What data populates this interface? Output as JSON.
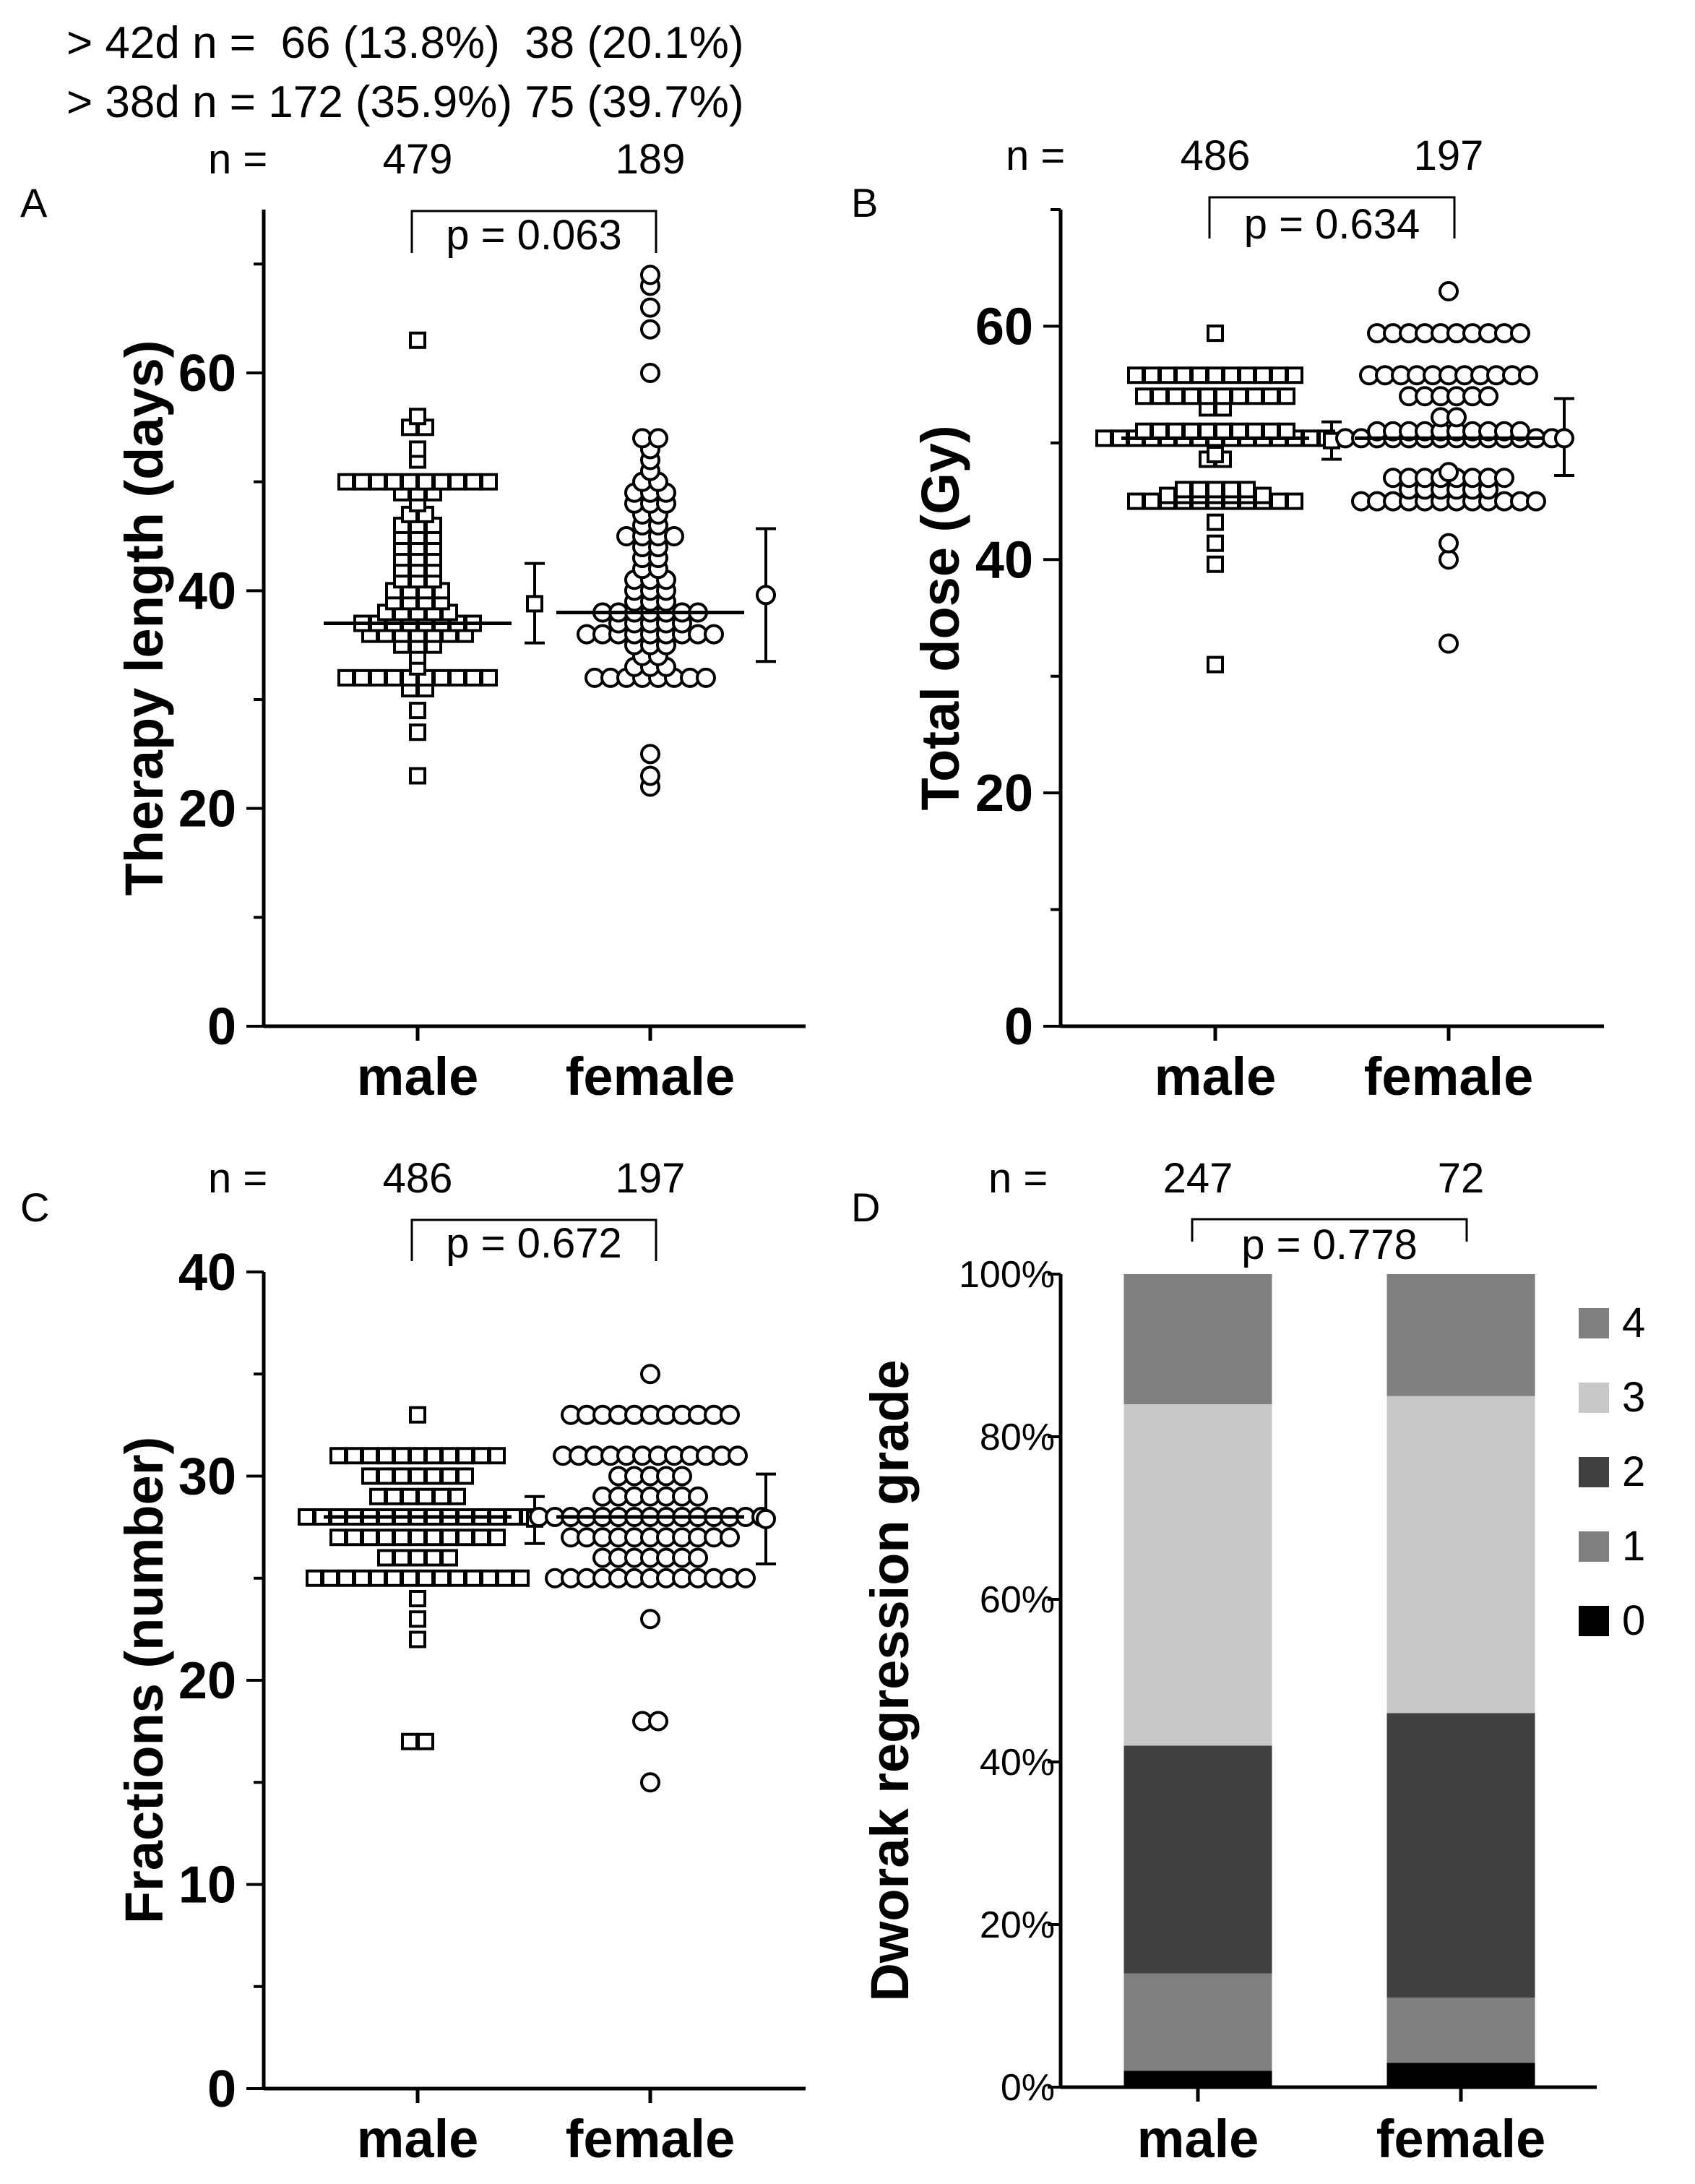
{
  "header": {
    "line1": "> 42d n =  66 (13.8%)  38 (20.1%)",
    "line2": "> 38d n = 172 (35.9%) 75 (39.7%)"
  },
  "chart_data": [
    {
      "panel": "A",
      "type": "scatter",
      "categories": [
        "male",
        "female"
      ],
      "n_label": "n =",
      "n_values": [
        "479",
        "189"
      ],
      "p_label": "p = 0.063",
      "ylabel": "Therapy length (days)",
      "ylim": [
        0,
        75
      ],
      "yticks": [
        0,
        20,
        40,
        60
      ],
      "medians": [
        37,
        38
      ],
      "summary": [
        {
          "mean": 38.8,
          "low": 35.2,
          "high": 42.5
        },
        {
          "mean": 39.6,
          "low": 33.5,
          "high": 45.7
        }
      ],
      "points": [
        [
          23,
          27,
          29,
          31,
          31,
          32,
          32,
          32,
          32,
          32,
          32,
          32,
          32,
          32,
          32,
          33,
          34,
          35,
          35,
          35,
          36,
          36,
          36,
          36,
          36,
          36,
          36,
          37,
          37,
          37,
          37,
          37,
          37,
          37,
          37,
          38,
          38,
          38,
          38,
          38,
          39,
          39,
          39,
          39,
          40,
          40,
          40,
          40,
          41,
          41,
          41,
          42,
          42,
          42,
          43,
          43,
          43,
          44,
          44,
          44,
          45,
          45,
          45,
          46,
          46,
          46,
          47,
          47,
          48,
          49,
          49,
          49,
          50,
          50,
          50,
          50,
          50,
          50,
          50,
          50,
          50,
          50,
          52,
          53,
          55,
          55,
          56,
          63
        ],
        [
          22,
          23,
          25,
          32,
          32,
          32,
          32,
          32,
          32,
          32,
          32,
          33,
          33,
          33,
          34,
          34,
          35,
          35,
          35,
          36,
          36,
          36,
          36,
          36,
          36,
          36,
          36,
          36,
          37,
          37,
          37,
          37,
          37,
          38,
          38,
          38,
          38,
          38,
          38,
          38,
          39,
          39,
          39,
          40,
          40,
          40,
          41,
          41,
          41,
          42,
          42,
          43,
          43,
          44,
          44,
          45,
          45,
          45,
          45,
          46,
          46,
          47,
          47,
          48,
          48,
          48,
          49,
          49,
          49,
          50,
          50,
          51,
          52,
          53,
          54,
          54,
          60,
          64,
          66,
          68,
          69
        ]
      ]
    },
    {
      "panel": "B",
      "type": "scatter",
      "categories": [
        "male",
        "female"
      ],
      "n_label": "n =",
      "n_values": [
        "486",
        "197"
      ],
      "p_label": "p = 0.634",
      "ylabel": "Total dose (Gy)",
      "ylim": [
        0,
        70
      ],
      "yticks": [
        0,
        20,
        40,
        60
      ],
      "medians": [
        50.4,
        50.4
      ],
      "summary": [
        {
          "mean": 50.2,
          "low": 48.6,
          "high": 51.8
        },
        {
          "mean": 50.4,
          "low": 47.2,
          "high": 53.8
        }
      ],
      "points": [
        [
          31,
          39.6,
          41.4,
          43.2,
          45,
          45,
          45,
          45,
          45,
          45,
          45,
          45,
          45,
          45,
          45,
          45.5,
          45.5,
          45.5,
          45.5,
          45.5,
          45.5,
          45.5,
          46,
          46,
          46,
          46,
          46,
          48.6,
          48.6,
          49,
          50.4,
          50.4,
          50.4,
          50.4,
          50.4,
          50.4,
          50.4,
          50.4,
          50.4,
          50.4,
          50.4,
          50.4,
          50.4,
          50.4,
          50.4,
          51,
          51,
          51,
          51,
          51,
          51,
          51,
          51,
          51,
          51,
          53,
          53,
          54,
          54,
          54,
          54,
          54,
          54,
          54,
          54,
          54,
          54,
          55.8,
          55.8,
          55.8,
          55.8,
          55.8,
          55.8,
          55.8,
          55.8,
          55.8,
          55.8,
          55.8,
          59.4
        ],
        [
          32.8,
          40,
          41.4,
          45,
          45,
          45,
          45,
          45,
          45,
          45,
          45,
          45,
          45,
          45,
          45,
          46,
          46,
          46,
          46,
          46,
          46,
          47,
          47,
          47,
          47,
          47,
          47,
          47,
          47,
          47.5,
          50.4,
          50.4,
          50.4,
          50.4,
          50.4,
          50.4,
          50.4,
          50.4,
          50.4,
          50.4,
          50.4,
          50.4,
          50.4,
          50.4,
          51,
          51,
          51,
          51,
          51,
          51,
          51,
          51,
          51,
          51,
          52.2,
          52.2,
          54,
          54,
          54,
          54,
          54,
          54,
          55.8,
          55.8,
          55.8,
          55.8,
          55.8,
          55.8,
          55.8,
          55.8,
          55.8,
          55.8,
          55.8,
          59.4,
          59.4,
          59.4,
          59.4,
          59.4,
          59.4,
          59.4,
          59.4,
          59.4,
          59.4,
          63
        ]
      ]
    },
    {
      "panel": "C",
      "type": "scatter",
      "categories": [
        "male",
        "female"
      ],
      "n_label": "n =",
      "n_values": [
        "486",
        "197"
      ],
      "p_label": "p = 0.672",
      "ylabel": "Fractions (number)",
      "ylim": [
        0,
        40
      ],
      "yticks": [
        0,
        10,
        20,
        30,
        40
      ],
      "medians": [
        28,
        28
      ],
      "summary": [
        {
          "mean": 27.9,
          "low": 26.7,
          "high": 29.0
        },
        {
          "mean": 27.9,
          "low": 25.7,
          "high": 30.1
        }
      ],
      "points": [
        [
          17,
          17,
          22,
          23,
          24,
          25,
          25,
          25,
          25,
          25,
          25,
          25,
          25,
          25,
          25,
          25,
          25,
          25,
          25,
          26,
          26,
          26,
          26,
          26,
          27,
          27,
          27,
          27,
          27,
          27,
          27,
          27,
          27,
          27,
          27,
          28,
          28,
          28,
          28,
          28,
          28,
          28,
          28,
          28,
          28,
          28,
          28,
          28,
          28,
          28,
          29,
          29,
          29,
          29,
          29,
          29,
          30,
          30,
          30,
          30,
          30,
          30,
          30,
          31,
          31,
          31,
          31,
          31,
          31,
          31,
          31,
          31,
          31,
          31,
          33
        ],
        [
          15,
          18,
          18,
          23,
          25,
          25,
          25,
          25,
          25,
          25,
          25,
          25,
          25,
          25,
          25,
          25,
          25,
          26,
          26,
          26,
          26,
          26,
          26,
          26,
          27,
          27,
          27,
          27,
          27,
          27,
          27,
          27,
          27,
          27,
          27,
          28,
          28,
          28,
          28,
          28,
          28,
          28,
          28,
          28,
          28,
          28,
          28,
          28,
          28,
          28,
          29,
          29,
          29,
          29,
          29,
          29,
          29,
          30,
          30,
          30,
          30,
          30,
          31,
          31,
          31,
          31,
          31,
          31,
          31,
          31,
          31,
          31,
          31,
          31,
          33,
          33,
          33,
          33,
          33,
          33,
          33,
          33,
          33,
          33,
          33,
          35
        ]
      ]
    },
    {
      "panel": "D",
      "type": "bar",
      "stacked": true,
      "categories": [
        "male",
        "female"
      ],
      "n_label": "n =",
      "n_values": [
        "247",
        "72"
      ],
      "p_label": "p = 0.778",
      "ylabel": "Dworak regression grade",
      "ylim": [
        0,
        100
      ],
      "yticks": [
        "0%",
        "20%",
        "40%",
        "60%",
        "80%",
        "100%"
      ],
      "series": [
        {
          "name": "0",
          "color": "#000000",
          "values": [
            2,
            3
          ]
        },
        {
          "name": "1",
          "color": "#7f7f7f",
          "values": [
            12,
            8
          ]
        },
        {
          "name": "2",
          "color": "#404040",
          "values": [
            28,
            35
          ]
        },
        {
          "name": "3",
          "color": "#c8c8c8",
          "values": [
            42,
            39
          ]
        },
        {
          "name": "4",
          "color": "#808080",
          "values": [
            16,
            15
          ]
        }
      ],
      "legend_order": [
        "4",
        "3",
        "2",
        "1",
        "0"
      ],
      "legend_position": "right"
    }
  ]
}
